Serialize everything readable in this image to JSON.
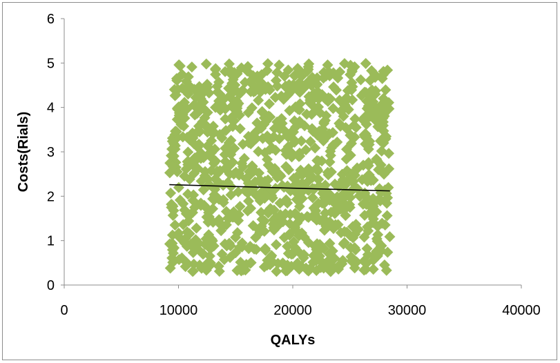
{
  "chart_data": {
    "type": "scatter",
    "title": "",
    "xlabel": "QALYs",
    "ylabel": "Costs(Rials)",
    "xlim": [
      0,
      40000
    ],
    "ylim": [
      0,
      6
    ],
    "x_ticks": [
      "0",
      "10000",
      "20000",
      "30000",
      "40000"
    ],
    "y_ticks": [
      "0",
      "1",
      "2",
      "3",
      "4",
      "5",
      "6"
    ],
    "grid": false,
    "legend": "none",
    "marker": "diamond",
    "marker_color": "#9BBB59",
    "line_color": "#000000",
    "point_cloud": {
      "n_points": 1000,
      "x_range": [
        9200,
        28500
      ],
      "y_range": [
        0.3,
        5.0
      ],
      "distribution": "uniform"
    },
    "trendline": {
      "x": [
        9200,
        28500
      ],
      "y": [
        2.26,
        2.12
      ]
    }
  }
}
